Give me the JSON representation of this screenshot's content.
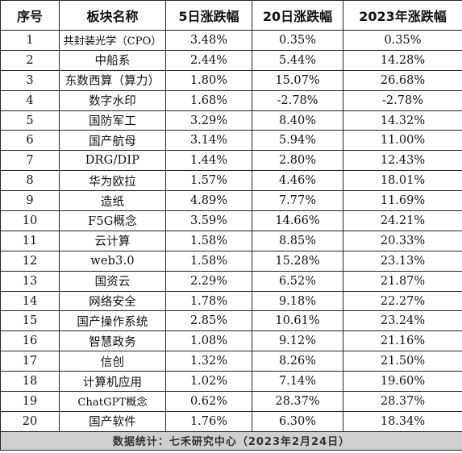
{
  "headers": [
    "序号",
    "板块名称",
    "5日涨跌幅",
    "20日涨跌幅",
    "2023年涨跌幅"
  ],
  "rows": [
    {
      "no": "1",
      "name": "共封装光学（CPO）",
      "d5": "3.48%",
      "d20": "0.35%",
      "ytd": "0.35%"
    },
    {
      "no": "2",
      "name": "中船系",
      "d5": "2.44%",
      "d20": "5.44%",
      "ytd": "14.28%"
    },
    {
      "no": "3",
      "name": "东数西算（算力）",
      "d5": "1.80%",
      "d20": "15.07%",
      "ytd": "26.68%"
    },
    {
      "no": "4",
      "name": "数字水印",
      "d5": "1.68%",
      "d20": "-2.78%",
      "ytd": "-2.78%"
    },
    {
      "no": "5",
      "name": "国防军工",
      "d5": "3.29%",
      "d20": "8.40%",
      "ytd": "14.32%"
    },
    {
      "no": "6",
      "name": "国产航母",
      "d5": "3.14%",
      "d20": "5.94%",
      "ytd": "11.00%"
    },
    {
      "no": "7",
      "name": "DRG/DIP",
      "d5": "1.44%",
      "d20": "2.80%",
      "ytd": "12.43%"
    },
    {
      "no": "8",
      "name": "华为欧拉",
      "d5": "1.57%",
      "d20": "4.46%",
      "ytd": "18.01%"
    },
    {
      "no": "9",
      "name": "造纸",
      "d5": "4.89%",
      "d20": "7.77%",
      "ytd": "11.69%"
    },
    {
      "no": "10",
      "name": "F5G概念",
      "d5": "3.59%",
      "d20": "14.66%",
      "ytd": "24.21%"
    },
    {
      "no": "11",
      "name": "云计算",
      "d5": "1.58%",
      "d20": "8.85%",
      "ytd": "20.33%"
    },
    {
      "no": "12",
      "name": "web3.0",
      "d5": "1.58%",
      "d20": "15.28%",
      "ytd": "23.13%"
    },
    {
      "no": "13",
      "name": "国资云",
      "d5": "2.29%",
      "d20": "6.52%",
      "ytd": "21.87%"
    },
    {
      "no": "14",
      "name": "网络安全",
      "d5": "1.78%",
      "d20": "9.18%",
      "ytd": "22.27%"
    },
    {
      "no": "15",
      "name": "国产操作系统",
      "d5": "2.85%",
      "d20": "10.61%",
      "ytd": "23.24%"
    },
    {
      "no": "16",
      "name": "智慧政务",
      "d5": "1.08%",
      "d20": "9.12%",
      "ytd": "21.16%"
    },
    {
      "no": "17",
      "name": "信创",
      "d5": "1.32%",
      "d20": "8.26%",
      "ytd": "21.50%"
    },
    {
      "no": "18",
      "name": "计算机应用",
      "d5": "1.02%",
      "d20": "7.14%",
      "ytd": "19.60%"
    },
    {
      "no": "19",
      "name": "ChatGPT概念",
      "d5": "0.62%",
      "d20": "28.37%",
      "ytd": "28.37%"
    },
    {
      "no": "20",
      "name": "国产软件",
      "d5": "1.76%",
      "d20": "6.30%",
      "ytd": "18.34%"
    }
  ],
  "footer": "数据统计：七禾研究中心（2023年2月24日）"
}
